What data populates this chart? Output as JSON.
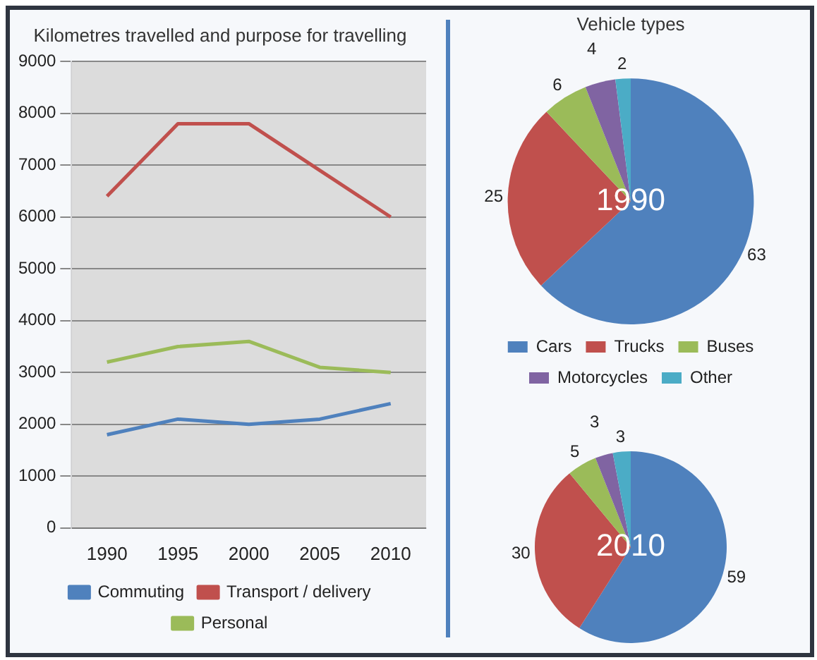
{
  "chart_data": [
    {
      "type": "line",
      "title": "Kilometres travelled and purpose for travelling",
      "categories": [
        "1990",
        "1995",
        "2000",
        "2005",
        "2010"
      ],
      "series": [
        {
          "name": "Commuting",
          "color": "#4f81bd",
          "values": [
            1800,
            2100,
            2000,
            2100,
            2400
          ]
        },
        {
          "name": "Transport / delivery",
          "color": "#c0504d",
          "values": [
            6400,
            7800,
            7800,
            6900,
            6000
          ]
        },
        {
          "name": "Personal",
          "color": "#9bbb59",
          "values": [
            3200,
            3500,
            3600,
            3100,
            3000
          ]
        }
      ],
      "ylim": [
        0,
        9000
      ],
      "yticks": [
        0,
        1000,
        2000,
        3000,
        4000,
        5000,
        6000,
        7000,
        8000,
        9000
      ],
      "grid": "y",
      "legend": "bottom",
      "marker": "none"
    },
    {
      "type": "pie",
      "title": "Vehicle types",
      "categories": [
        "Cars",
        "Trucks",
        "Buses",
        "Motorcycles",
        "Other"
      ],
      "values": [
        63,
        25,
        6,
        4,
        2
      ],
      "colors": [
        "#4f81bd",
        "#c0504d",
        "#9bbb59",
        "#8064a2",
        "#4bacc6"
      ],
      "annotations": [
        "1990"
      ],
      "data_labels": true,
      "legend": "bottom"
    },
    {
      "type": "pie",
      "categories": [
        null,
        null,
        null,
        null,
        null
      ],
      "values": [
        59,
        30,
        5,
        3,
        3
      ],
      "colors": [
        "#4f81bd",
        "#c0504d",
        "#9bbb59",
        "#8064a2",
        "#4bacc6"
      ],
      "annotations": [
        "2010"
      ],
      "data_labels": true
    }
  ]
}
